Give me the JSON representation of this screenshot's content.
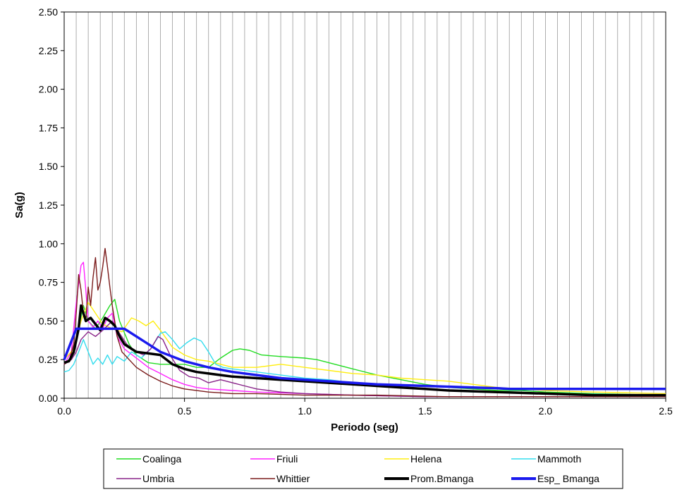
{
  "chart_data": {
    "type": "line",
    "xlabel": "Periodo (seg)",
    "ylabel": "Sa(g)",
    "xlim": [
      0,
      2.5
    ],
    "ylim": [
      0,
      2.5
    ],
    "x_ticks": [
      "0.0",
      "0.5",
      "1.0",
      "1.5",
      "2.0",
      "2.5"
    ],
    "y_ticks": [
      "0.00",
      "0.25",
      "0.50",
      "0.75",
      "1.00",
      "1.25",
      "1.50",
      "1.75",
      "2.00",
      "2.25",
      "2.50"
    ],
    "grid": "vertical lines every 0.05 s",
    "legend_position": "bottom",
    "series": [
      {
        "name": "Coalinga",
        "color": "#22dd22",
        "points": [
          [
            0,
            0.23
          ],
          [
            0.03,
            0.26
          ],
          [
            0.06,
            0.45
          ],
          [
            0.08,
            0.6
          ],
          [
            0.1,
            0.5
          ],
          [
            0.13,
            0.45
          ],
          [
            0.16,
            0.52
          ],
          [
            0.19,
            0.6
          ],
          [
            0.21,
            0.64
          ],
          [
            0.23,
            0.5
          ],
          [
            0.27,
            0.35
          ],
          [
            0.3,
            0.28
          ],
          [
            0.35,
            0.23
          ],
          [
            0.4,
            0.22
          ],
          [
            0.45,
            0.22
          ],
          [
            0.5,
            0.22
          ],
          [
            0.55,
            0.2
          ],
          [
            0.6,
            0.2
          ],
          [
            0.65,
            0.26
          ],
          [
            0.7,
            0.31
          ],
          [
            0.73,
            0.32
          ],
          [
            0.77,
            0.31
          ],
          [
            0.82,
            0.28
          ],
          [
            0.9,
            0.27
          ],
          [
            1.0,
            0.26
          ],
          [
            1.05,
            0.25
          ],
          [
            1.1,
            0.23
          ],
          [
            1.2,
            0.19
          ],
          [
            1.3,
            0.15
          ],
          [
            1.4,
            0.12
          ],
          [
            1.5,
            0.09
          ],
          [
            1.6,
            0.07
          ],
          [
            1.7,
            0.06
          ],
          [
            1.8,
            0.05
          ],
          [
            1.9,
            0.05
          ],
          [
            2.0,
            0.04
          ],
          [
            2.2,
            0.03
          ],
          [
            2.5,
            0.02
          ]
        ]
      },
      {
        "name": "Friuli",
        "color": "#ff22ff",
        "points": [
          [
            0,
            0.22
          ],
          [
            0.03,
            0.3
          ],
          [
            0.05,
            0.62
          ],
          [
            0.07,
            0.86
          ],
          [
            0.08,
            0.88
          ],
          [
            0.09,
            0.7
          ],
          [
            0.1,
            0.5
          ],
          [
            0.12,
            0.46
          ],
          [
            0.14,
            0.5
          ],
          [
            0.16,
            0.45
          ],
          [
            0.18,
            0.52
          ],
          [
            0.2,
            0.55
          ],
          [
            0.22,
            0.4
          ],
          [
            0.25,
            0.32
          ],
          [
            0.3,
            0.26
          ],
          [
            0.35,
            0.2
          ],
          [
            0.4,
            0.16
          ],
          [
            0.45,
            0.12
          ],
          [
            0.5,
            0.09
          ],
          [
            0.55,
            0.07
          ],
          [
            0.6,
            0.06
          ],
          [
            0.7,
            0.05
          ],
          [
            0.8,
            0.04
          ],
          [
            1.0,
            0.03
          ],
          [
            1.2,
            0.02
          ],
          [
            1.5,
            0.01
          ],
          [
            2.0,
            0.01
          ],
          [
            2.5,
            0.01
          ]
        ]
      },
      {
        "name": "Helena",
        "color": "#ffee11",
        "points": [
          [
            0,
            0.25
          ],
          [
            0.04,
            0.32
          ],
          [
            0.07,
            0.5
          ],
          [
            0.1,
            0.62
          ],
          [
            0.13,
            0.55
          ],
          [
            0.16,
            0.48
          ],
          [
            0.2,
            0.45
          ],
          [
            0.24,
            0.43
          ],
          [
            0.28,
            0.52
          ],
          [
            0.31,
            0.5
          ],
          [
            0.34,
            0.47
          ],
          [
            0.37,
            0.5
          ],
          [
            0.4,
            0.44
          ],
          [
            0.45,
            0.33
          ],
          [
            0.5,
            0.28
          ],
          [
            0.55,
            0.25
          ],
          [
            0.6,
            0.24
          ],
          [
            0.65,
            0.22
          ],
          [
            0.7,
            0.2
          ],
          [
            0.8,
            0.2
          ],
          [
            0.9,
            0.22
          ],
          [
            1.0,
            0.2
          ],
          [
            1.1,
            0.18
          ],
          [
            1.2,
            0.16
          ],
          [
            1.3,
            0.15
          ],
          [
            1.4,
            0.13
          ],
          [
            1.5,
            0.12
          ],
          [
            1.6,
            0.11
          ],
          [
            1.7,
            0.09
          ],
          [
            1.8,
            0.07
          ],
          [
            2.0,
            0.05
          ],
          [
            2.2,
            0.04
          ],
          [
            2.5,
            0.03
          ]
        ]
      },
      {
        "name": "Mammoth",
        "color": "#33ddee",
        "points": [
          [
            0,
            0.17
          ],
          [
            0.02,
            0.18
          ],
          [
            0.04,
            0.22
          ],
          [
            0.06,
            0.3
          ],
          [
            0.08,
            0.38
          ],
          [
            0.1,
            0.3
          ],
          [
            0.12,
            0.22
          ],
          [
            0.14,
            0.26
          ],
          [
            0.16,
            0.22
          ],
          [
            0.18,
            0.28
          ],
          [
            0.2,
            0.22
          ],
          [
            0.22,
            0.27
          ],
          [
            0.25,
            0.24
          ],
          [
            0.28,
            0.3
          ],
          [
            0.32,
            0.26
          ],
          [
            0.36,
            0.32
          ],
          [
            0.4,
            0.42
          ],
          [
            0.42,
            0.43
          ],
          [
            0.45,
            0.38
          ],
          [
            0.48,
            0.32
          ],
          [
            0.51,
            0.36
          ],
          [
            0.54,
            0.39
          ],
          [
            0.57,
            0.37
          ],
          [
            0.6,
            0.3
          ],
          [
            0.63,
            0.22
          ],
          [
            0.66,
            0.2
          ],
          [
            0.7,
            0.19
          ],
          [
            0.8,
            0.17
          ],
          [
            0.9,
            0.15
          ],
          [
            1.0,
            0.13
          ],
          [
            1.1,
            0.12
          ],
          [
            1.2,
            0.1
          ],
          [
            1.3,
            0.08
          ],
          [
            1.4,
            0.07
          ],
          [
            1.5,
            0.06
          ],
          [
            1.7,
            0.04
          ],
          [
            2.0,
            0.03
          ],
          [
            2.5,
            0.02
          ]
        ]
      },
      {
        "name": "Umbria",
        "color": "#882288",
        "points": [
          [
            0,
            0.22
          ],
          [
            0.03,
            0.25
          ],
          [
            0.05,
            0.3
          ],
          [
            0.07,
            0.38
          ],
          [
            0.1,
            0.43
          ],
          [
            0.13,
            0.4
          ],
          [
            0.16,
            0.44
          ],
          [
            0.2,
            0.5
          ],
          [
            0.23,
            0.42
          ],
          [
            0.26,
            0.35
          ],
          [
            0.3,
            0.3
          ],
          [
            0.33,
            0.28
          ],
          [
            0.36,
            0.32
          ],
          [
            0.39,
            0.4
          ],
          [
            0.41,
            0.38
          ],
          [
            0.44,
            0.28
          ],
          [
            0.48,
            0.18
          ],
          [
            0.52,
            0.14
          ],
          [
            0.56,
            0.13
          ],
          [
            0.6,
            0.1
          ],
          [
            0.65,
            0.12
          ],
          [
            0.7,
            0.1
          ],
          [
            0.75,
            0.08
          ],
          [
            0.8,
            0.06
          ],
          [
            0.9,
            0.04
          ],
          [
            1.0,
            0.03
          ],
          [
            1.2,
            0.02
          ],
          [
            1.5,
            0.01
          ],
          [
            2.0,
            0.01
          ],
          [
            2.5,
            0.01
          ]
        ]
      },
      {
        "name": "Whittier",
        "color": "#7a1a1a",
        "points": [
          [
            0,
            0.22
          ],
          [
            0.02,
            0.24
          ],
          [
            0.04,
            0.35
          ],
          [
            0.05,
            0.55
          ],
          [
            0.06,
            0.8
          ],
          [
            0.07,
            0.7
          ],
          [
            0.08,
            0.55
          ],
          [
            0.09,
            0.5
          ],
          [
            0.1,
            0.72
          ],
          [
            0.11,
            0.6
          ],
          [
            0.12,
            0.78
          ],
          [
            0.13,
            0.91
          ],
          [
            0.14,
            0.7
          ],
          [
            0.15,
            0.75
          ],
          [
            0.16,
            0.85
          ],
          [
            0.17,
            0.97
          ],
          [
            0.18,
            0.85
          ],
          [
            0.19,
            0.72
          ],
          [
            0.2,
            0.6
          ],
          [
            0.22,
            0.4
          ],
          [
            0.24,
            0.3
          ],
          [
            0.27,
            0.25
          ],
          [
            0.3,
            0.2
          ],
          [
            0.35,
            0.15
          ],
          [
            0.4,
            0.11
          ],
          [
            0.45,
            0.08
          ],
          [
            0.5,
            0.06
          ],
          [
            0.6,
            0.04
          ],
          [
            0.7,
            0.03
          ],
          [
            0.8,
            0.03
          ],
          [
            1.0,
            0.02
          ],
          [
            1.3,
            0.02
          ],
          [
            1.6,
            0.01
          ],
          [
            2.0,
            0.01
          ],
          [
            2.5,
            0.01
          ]
        ]
      },
      {
        "name": "Prom.Bmanga",
        "color": "#000000",
        "points": [
          [
            0,
            0.23
          ],
          [
            0.02,
            0.24
          ],
          [
            0.04,
            0.3
          ],
          [
            0.06,
            0.45
          ],
          [
            0.07,
            0.6
          ],
          [
            0.08,
            0.55
          ],
          [
            0.09,
            0.5
          ],
          [
            0.11,
            0.52
          ],
          [
            0.13,
            0.48
          ],
          [
            0.15,
            0.44
          ],
          [
            0.17,
            0.52
          ],
          [
            0.19,
            0.5
          ],
          [
            0.21,
            0.47
          ],
          [
            0.23,
            0.4
          ],
          [
            0.25,
            0.35
          ],
          [
            0.28,
            0.32
          ],
          [
            0.3,
            0.3
          ],
          [
            0.35,
            0.29
          ],
          [
            0.4,
            0.28
          ],
          [
            0.45,
            0.22
          ],
          [
            0.5,
            0.19
          ],
          [
            0.55,
            0.17
          ],
          [
            0.6,
            0.16
          ],
          [
            0.65,
            0.15
          ],
          [
            0.7,
            0.14
          ],
          [
            0.8,
            0.13
          ],
          [
            0.9,
            0.12
          ],
          [
            1.0,
            0.11
          ],
          [
            1.1,
            0.1
          ],
          [
            1.2,
            0.09
          ],
          [
            1.3,
            0.08
          ],
          [
            1.4,
            0.07
          ],
          [
            1.5,
            0.06
          ],
          [
            1.6,
            0.05
          ],
          [
            1.8,
            0.04
          ],
          [
            2.0,
            0.03
          ],
          [
            2.2,
            0.02
          ],
          [
            2.5,
            0.02
          ]
        ]
      },
      {
        "name": "Esp_ Bmanga",
        "color": "#1a1aee",
        "points": [
          [
            0,
            0.25
          ],
          [
            0.05,
            0.45
          ],
          [
            0.25,
            0.45
          ],
          [
            0.3,
            0.4
          ],
          [
            0.4,
            0.3
          ],
          [
            0.5,
            0.24
          ],
          [
            0.6,
            0.2
          ],
          [
            0.7,
            0.17
          ],
          [
            0.8,
            0.15
          ],
          [
            0.9,
            0.13
          ],
          [
            1.0,
            0.12
          ],
          [
            1.1,
            0.11
          ],
          [
            1.2,
            0.1
          ],
          [
            1.3,
            0.09
          ],
          [
            1.4,
            0.085
          ],
          [
            1.5,
            0.08
          ],
          [
            1.6,
            0.075
          ],
          [
            1.7,
            0.07
          ],
          [
            1.8,
            0.065
          ],
          [
            1.85,
            0.06
          ],
          [
            2.0,
            0.06
          ],
          [
            2.5,
            0.06
          ]
        ]
      }
    ]
  }
}
